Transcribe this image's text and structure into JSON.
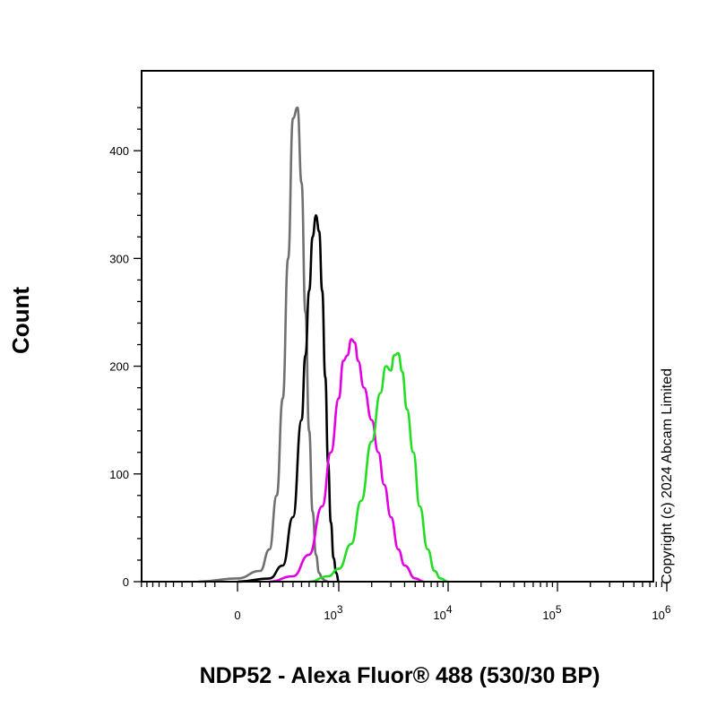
{
  "chart_data": {
    "type": "line",
    "title": "",
    "xlabel": "NDP52 - Alexa Fluor® 488 (530/30 BP)",
    "ylabel": "Count",
    "x_scale": "biexponential",
    "xlim": [
      -1000,
      1000000
    ],
    "ylim": [
      0,
      470
    ],
    "x_ticks": [
      {
        "value": 0,
        "base": "0",
        "exp": ""
      },
      {
        "value": 1000,
        "base": "10",
        "exp": "3"
      },
      {
        "value": 10000,
        "base": "10",
        "exp": "4"
      },
      {
        "value": 100000,
        "base": "10",
        "exp": "5"
      },
      {
        "value": 1000000,
        "base": "10",
        "exp": "6"
      }
    ],
    "y_ticks": [
      0,
      100,
      200,
      300,
      400
    ],
    "grid": false,
    "annotations": [
      "Copyright (c) 2024 Abcam Limited"
    ],
    "series": [
      {
        "color": "#707070",
        "x": [
          -150,
          0,
          50,
          100,
          150,
          200,
          250,
          300,
          350,
          400,
          450,
          500,
          550,
          600,
          650,
          700,
          750,
          800
        ],
        "y": [
          0,
          3,
          10,
          30,
          80,
          170,
          300,
          430,
          440,
          370,
          250,
          140,
          65,
          25,
          8,
          3,
          1,
          0
        ]
      },
      {
        "color": "#000000",
        "x": [
          0,
          100,
          200,
          300,
          400,
          450,
          500,
          550,
          600,
          650,
          700,
          750,
          800,
          850,
          900,
          950,
          1000
        ],
        "y": [
          0,
          3,
          15,
          60,
          150,
          210,
          270,
          320,
          340,
          325,
          270,
          190,
          110,
          55,
          22,
          8,
          0
        ]
      },
      {
        "color": "#e000e0",
        "x": [
          100,
          300,
          500,
          700,
          850,
          1000,
          1100,
          1200,
          1300,
          1400,
          1500,
          1700,
          2000,
          2300,
          2600,
          3000,
          3500,
          4000,
          5000,
          6000
        ],
        "y": [
          0,
          5,
          25,
          70,
          120,
          170,
          205,
          210,
          225,
          222,
          205,
          180,
          150,
          120,
          90,
          60,
          30,
          15,
          3,
          0
        ]
      },
      {
        "color": "#22dd22",
        "x": [
          500,
          800,
          1000,
          1300,
          1600,
          2000,
          2400,
          2700,
          3000,
          3200,
          3500,
          3800,
          4200,
          4800,
          5500,
          6500,
          7500,
          8500,
          10000
        ],
        "y": [
          0,
          5,
          12,
          35,
          75,
          130,
          175,
          200,
          196,
          210,
          212,
          195,
          160,
          120,
          70,
          30,
          10,
          3,
          0
        ]
      }
    ]
  }
}
